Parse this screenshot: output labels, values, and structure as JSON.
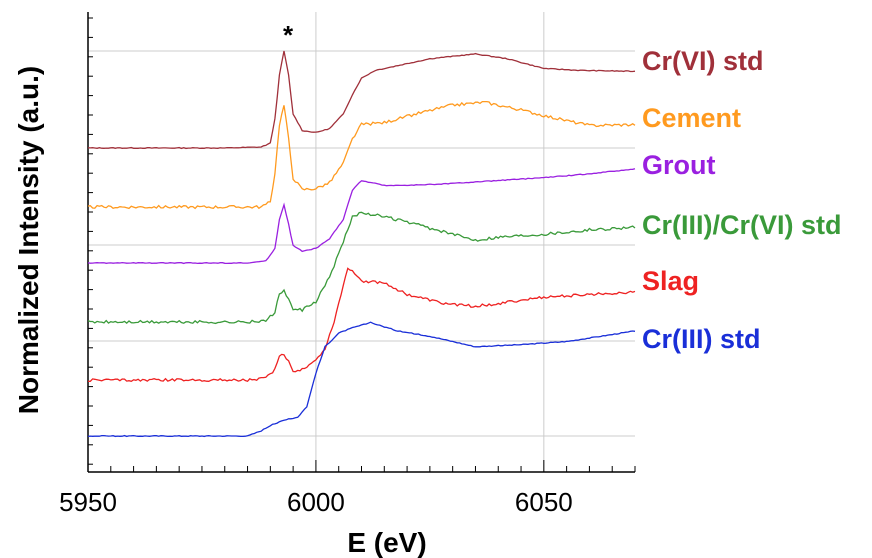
{
  "chart_data": {
    "type": "line",
    "xlabel": "E (eV)",
    "ylabel": "Normalized Intensity (a.u.)",
    "xlim": [
      5950,
      6070
    ],
    "x_ticks": [
      5950,
      6000,
      6050
    ],
    "grid": true,
    "y_tick_labels": false,
    "legend": "right, labels at curve ends",
    "annotations": [
      {
        "text": "*",
        "x": 5993
      }
    ],
    "series": [
      {
        "name": "Cr(VI) std",
        "color": "#a0303a",
        "offset": 0.0,
        "points": [
          [
            5950,
            0
          ],
          [
            5980,
            0
          ],
          [
            5988,
            0.01
          ],
          [
            5990,
            0.05
          ],
          [
            5991,
            0.3
          ],
          [
            5992,
            0.75
          ],
          [
            5993,
            1.0
          ],
          [
            5994,
            0.75
          ],
          [
            5995,
            0.35
          ],
          [
            5997,
            0.18
          ],
          [
            6000,
            0.16
          ],
          [
            6003,
            0.2
          ],
          [
            6006,
            0.35
          ],
          [
            6008,
            0.55
          ],
          [
            6010,
            0.72
          ],
          [
            6013,
            0.8
          ],
          [
            6018,
            0.85
          ],
          [
            6025,
            0.92
          ],
          [
            6035,
            0.97
          ],
          [
            6042,
            0.92
          ],
          [
            6050,
            0.82
          ],
          [
            6058,
            0.8
          ],
          [
            6070,
            0.79
          ]
        ]
      },
      {
        "name": "Cement",
        "color": "#ff9a1f",
        "offset": 1.0,
        "points": [
          [
            5950,
            0
          ],
          [
            5980,
            0
          ],
          [
            5988,
            0
          ],
          [
            5990,
            0.05
          ],
          [
            5991,
            0.35
          ],
          [
            5992,
            0.85
          ],
          [
            5993,
            1.05
          ],
          [
            5994,
            0.7
          ],
          [
            5995,
            0.3
          ],
          [
            5997,
            0.18
          ],
          [
            6000,
            0.19
          ],
          [
            6003,
            0.25
          ],
          [
            6006,
            0.45
          ],
          [
            6008,
            0.7
          ],
          [
            6010,
            0.85
          ],
          [
            6015,
            0.87
          ],
          [
            6022,
            0.96
          ],
          [
            6030,
            1.05
          ],
          [
            6037,
            1.08
          ],
          [
            6045,
            1.0
          ],
          [
            6052,
            0.92
          ],
          [
            6060,
            0.84
          ],
          [
            6070,
            0.85
          ]
        ]
      },
      {
        "name": "Grout",
        "color": "#9a20e0",
        "offset": 2.0,
        "points": [
          [
            5950,
            0
          ],
          [
            5985,
            0
          ],
          [
            5989,
            0.02
          ],
          [
            5991,
            0.15
          ],
          [
            5992,
            0.45
          ],
          [
            5993,
            0.6
          ],
          [
            5994,
            0.4
          ],
          [
            5995,
            0.18
          ],
          [
            5997,
            0.12
          ],
          [
            6000,
            0.15
          ],
          [
            6003,
            0.25
          ],
          [
            6006,
            0.45
          ],
          [
            6008,
            0.75
          ],
          [
            6010,
            0.85
          ],
          [
            6015,
            0.8
          ],
          [
            6020,
            0.8
          ],
          [
            6030,
            0.82
          ],
          [
            6040,
            0.85
          ],
          [
            6050,
            0.88
          ],
          [
            6060,
            0.92
          ],
          [
            6070,
            0.97
          ]
        ]
      },
      {
        "name": "Cr(III)/Cr(VI) std",
        "color": "#3a9a3a",
        "offset": 3.0,
        "points": [
          [
            5950,
            0
          ],
          [
            5985,
            0
          ],
          [
            5989,
            0.01
          ],
          [
            5991,
            0.1
          ],
          [
            5992,
            0.28
          ],
          [
            5993,
            0.32
          ],
          [
            5994,
            0.22
          ],
          [
            5995,
            0.12
          ],
          [
            5997,
            0.12
          ],
          [
            6000,
            0.2
          ],
          [
            6003,
            0.45
          ],
          [
            6006,
            0.8
          ],
          [
            6008,
            1.05
          ],
          [
            6010,
            1.1
          ],
          [
            6015,
            1.05
          ],
          [
            6020,
            1.0
          ],
          [
            6028,
            0.9
          ],
          [
            6035,
            0.82
          ],
          [
            6040,
            0.85
          ],
          [
            6050,
            0.88
          ],
          [
            6060,
            0.92
          ],
          [
            6070,
            0.95
          ]
        ]
      },
      {
        "name": "Slag",
        "color": "#ee2222",
        "offset": 4.0,
        "points": [
          [
            5950,
            0
          ],
          [
            5985,
            0
          ],
          [
            5989,
            0.02
          ],
          [
            5991,
            0.12
          ],
          [
            5992,
            0.26
          ],
          [
            5993,
            0.28
          ],
          [
            5994,
            0.2
          ],
          [
            5995,
            0.1
          ],
          [
            5997,
            0.12
          ],
          [
            6000,
            0.22
          ],
          [
            6002,
            0.35
          ],
          [
            6004,
            0.65
          ],
          [
            6006,
            1.05
          ],
          [
            6007,
            1.25
          ],
          [
            6008,
            1.22
          ],
          [
            6010,
            1.1
          ],
          [
            6015,
            1.08
          ],
          [
            6020,
            0.95
          ],
          [
            6028,
            0.85
          ],
          [
            6035,
            0.82
          ],
          [
            6040,
            0.85
          ],
          [
            6050,
            0.92
          ],
          [
            6060,
            0.95
          ],
          [
            6070,
            0.98
          ]
        ]
      },
      {
        "name": "Cr(III) std",
        "color": "#1a2fd8",
        "offset": 5.0,
        "points": [
          [
            5950,
            0
          ],
          [
            5985,
            0
          ],
          [
            5988,
            0.05
          ],
          [
            5990,
            0.1
          ],
          [
            5993,
            0.15
          ],
          [
            5996,
            0.18
          ],
          [
            5998,
            0.28
          ],
          [
            6000,
            0.6
          ],
          [
            6002,
            0.85
          ],
          [
            6005,
            0.98
          ],
          [
            6008,
            1.03
          ],
          [
            6012,
            1.08
          ],
          [
            6018,
            1.0
          ],
          [
            6025,
            0.95
          ],
          [
            6030,
            0.9
          ],
          [
            6035,
            0.85
          ],
          [
            6045,
            0.87
          ],
          [
            6055,
            0.9
          ],
          [
            6070,
            1.0
          ]
        ]
      }
    ]
  }
}
